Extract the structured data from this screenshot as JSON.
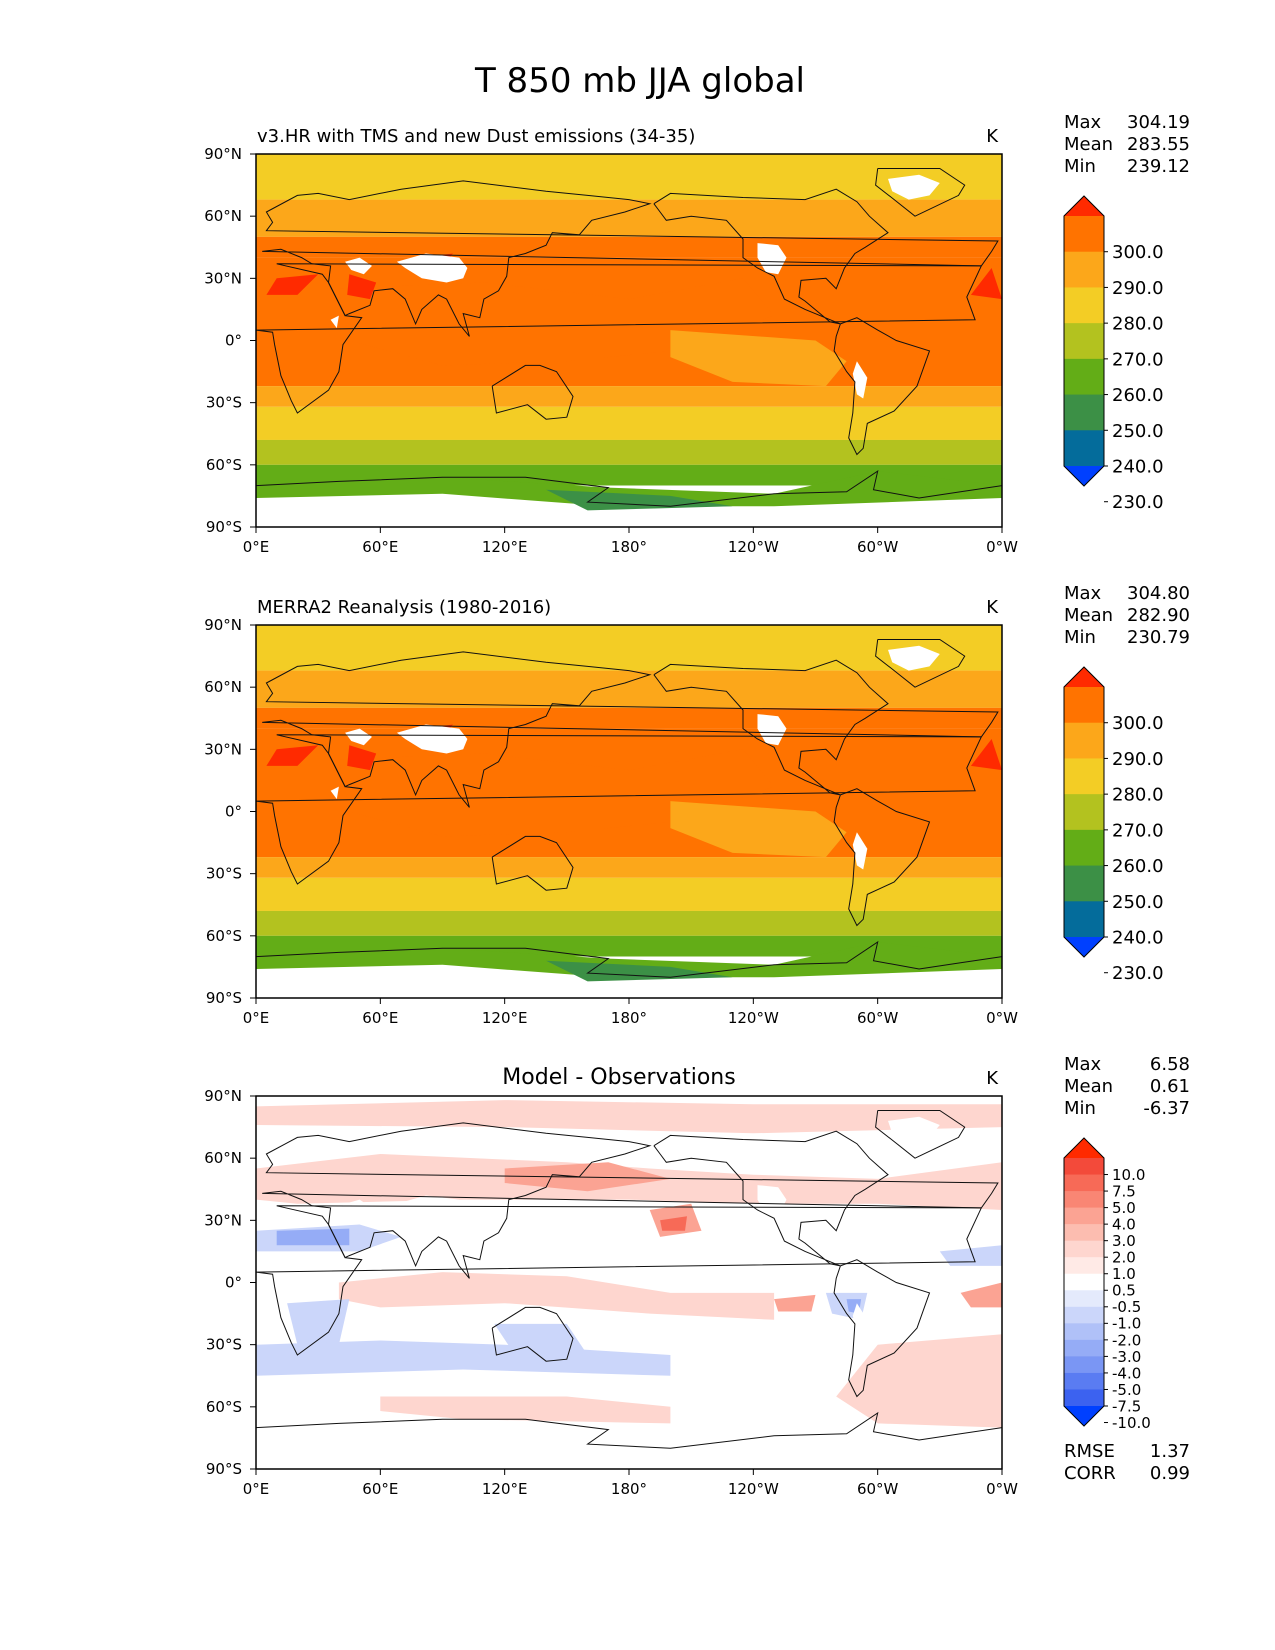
{
  "figure": {
    "title": "T 850 mb JJA global"
  },
  "chart_data": [
    {
      "type": "heatmap",
      "title": "v3.HR with TMS and new Dust emissions (34-35)",
      "units": "K",
      "stats": [
        {
          "label": "Max",
          "value": "304.19"
        },
        {
          "label": "Mean",
          "value": "283.55"
        },
        {
          "label": "Min",
          "value": "239.12"
        }
      ],
      "x_ticks": [
        "0°E",
        "60°E",
        "120°E",
        "180°",
        "120°W",
        "60°W",
        "0°W"
      ],
      "y_ticks": [
        "90°N",
        "60°N",
        "30°N",
        "0°",
        "30°S",
        "60°S",
        "90°S"
      ],
      "xlim": [
        0,
        360
      ],
      "ylim": [
        -90,
        90
      ],
      "colorbar": {
        "labels": [
          "300.0",
          "290.0",
          "280.0",
          "270.0",
          "260.0",
          "250.0",
          "240.0",
          "230.0"
        ],
        "colors": [
          "#ff2a00",
          "#ff7300",
          "#fca71a",
          "#f3cd25",
          "#b3c21f",
          "#63ad17",
          "#3c9046",
          "#046c9b",
          "#0040ff"
        ],
        "extend": "both"
      }
    },
    {
      "type": "heatmap",
      "title": "MERRA2 Reanalysis (1980-2016)",
      "units": "K",
      "stats": [
        {
          "label": "Max",
          "value": "304.80"
        },
        {
          "label": "Mean",
          "value": "282.90"
        },
        {
          "label": "Min",
          "value": "230.79"
        }
      ],
      "x_ticks": [
        "0°E",
        "60°E",
        "120°E",
        "180°",
        "120°W",
        "60°W",
        "0°W"
      ],
      "y_ticks": [
        "90°N",
        "60°N",
        "30°N",
        "0°",
        "30°S",
        "60°S",
        "90°S"
      ],
      "xlim": [
        0,
        360
      ],
      "ylim": [
        -90,
        90
      ],
      "colorbar": {
        "labels": [
          "300.0",
          "290.0",
          "280.0",
          "270.0",
          "260.0",
          "250.0",
          "240.0",
          "230.0"
        ],
        "colors": [
          "#ff2a00",
          "#ff7300",
          "#fca71a",
          "#f3cd25",
          "#b3c21f",
          "#63ad17",
          "#3c9046",
          "#046c9b",
          "#0040ff"
        ],
        "extend": "both"
      }
    },
    {
      "type": "heatmap",
      "title": "Model - Observations",
      "units": "K",
      "stats": [
        {
          "label": "Max",
          "value": "6.58"
        },
        {
          "label": "Mean",
          "value": "0.61"
        },
        {
          "label": "Min",
          "value": "-6.37"
        }
      ],
      "metrics": [
        {
          "label": "RMSE",
          "value": "1.37"
        },
        {
          "label": "CORR",
          "value": "0.99"
        }
      ],
      "x_ticks": [
        "0°E",
        "60°E",
        "120°E",
        "180°",
        "120°W",
        "60°W",
        "0°W"
      ],
      "y_ticks": [
        "90°N",
        "60°N",
        "30°N",
        "0°",
        "30°S",
        "60°S",
        "90°S"
      ],
      "xlim": [
        0,
        360
      ],
      "ylim": [
        -90,
        90
      ],
      "colorbar": {
        "labels": [
          "10.0",
          "7.5",
          "5.0",
          "4.0",
          "3.0",
          "2.0",
          "1.0",
          "0.5",
          "-0.5",
          "-1.0",
          "-2.0",
          "-3.0",
          "-4.0",
          "-5.0",
          "-7.5",
          "-10.0"
        ],
        "colors": [
          "#ff2a00",
          "#f34a3a",
          "#f76a57",
          "#f98674",
          "#fba393",
          "#fcbdb0",
          "#fed6cf",
          "#ffeae6",
          "#ffffff",
          "#e4eafc",
          "#cbd6fa",
          "#b0c1f8",
          "#95acf6",
          "#7a96f4",
          "#5a7cf2",
          "#3c62f0",
          "#0040ff"
        ],
        "extend": "both"
      }
    }
  ]
}
